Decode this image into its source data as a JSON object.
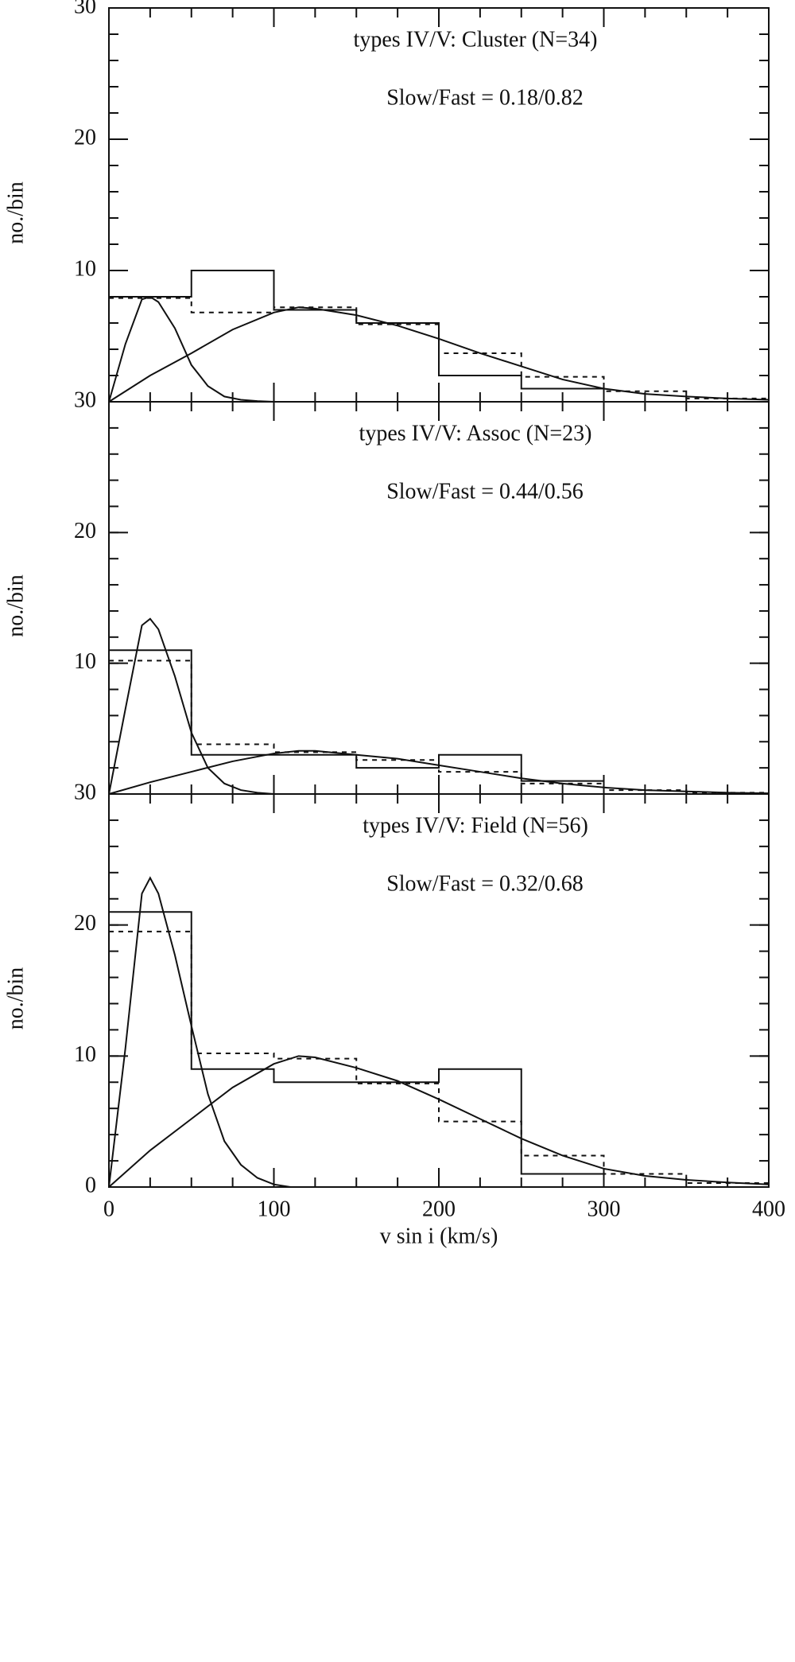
{
  "chart_data": [
    {
      "type": "histogram",
      "title": "types IV/V: Cluster (N=34)",
      "annotation": "Slow/Fast = 0.18/0.82",
      "ylabel": "no./bin",
      "bins": [
        0,
        50,
        100,
        150,
        200,
        250,
        300,
        350,
        400
      ],
      "counts": [
        8,
        10,
        7,
        6,
        2,
        1,
        0,
        0
      ],
      "dashed_counts": [
        7.9,
        6.8,
        7.2,
        5.9,
        3.7,
        1.9,
        0.8,
        0.25
      ],
      "curves": [
        {
          "x": [
            0,
            10,
            20,
            25,
            30,
            40,
            50,
            60,
            70,
            80,
            90,
            100,
            110
          ],
          "values": [
            0,
            4.4,
            7.8,
            8,
            7.6,
            5.6,
            2.8,
            1.2,
            0.4,
            0.15,
            0.05,
            0,
            0
          ]
        },
        {
          "x": [
            0,
            25,
            50,
            75,
            100,
            115,
            125,
            150,
            175,
            200,
            225,
            250,
            275,
            300,
            325,
            350,
            375,
            400
          ],
          "values": [
            0,
            2.0,
            3.7,
            5.5,
            6.8,
            7.2,
            7.1,
            6.6,
            5.8,
            4.8,
            3.7,
            2.7,
            1.7,
            1.0,
            0.6,
            0.4,
            0.25,
            0.15
          ]
        }
      ],
      "xlim": [
        0,
        400
      ],
      "xticks": [
        0,
        100,
        200,
        300,
        400
      ],
      "show_xtick_labels": false,
      "x_minor_step": 25,
      "ylim": [
        0,
        30
      ],
      "yticks": [
        10,
        20,
        30
      ],
      "y_minor_step": 2
    },
    {
      "type": "histogram",
      "title": "types IV/V: Assoc (N=23)",
      "annotation": "Slow/Fast = 0.44/0.56",
      "ylabel": "no./bin",
      "bins": [
        0,
        50,
        100,
        150,
        200,
        250,
        300,
        350,
        400
      ],
      "counts": [
        11,
        3,
        3,
        2,
        3,
        1,
        0,
        0
      ],
      "dashed_counts": [
        10.2,
        3.8,
        3.2,
        2.6,
        1.7,
        0.8,
        0.3,
        0.1
      ],
      "curves": [
        {
          "x": [
            0,
            10,
            20,
            25,
            30,
            40,
            50,
            60,
            70,
            80,
            90,
            100,
            110
          ],
          "values": [
            0,
            6.5,
            12.9,
            13.4,
            12.6,
            9,
            4.7,
            2,
            0.8,
            0.3,
            0.1,
            0,
            0
          ]
        },
        {
          "x": [
            0,
            25,
            50,
            75,
            100,
            115,
            125,
            150,
            175,
            200,
            225,
            250,
            275,
            300,
            325,
            350,
            375,
            400
          ],
          "values": [
            0,
            0.9,
            1.7,
            2.5,
            3.1,
            3.3,
            3.3,
            3.0,
            2.7,
            2.2,
            1.7,
            1.2,
            0.8,
            0.5,
            0.3,
            0.2,
            0.1,
            0.05
          ]
        }
      ],
      "xlim": [
        0,
        400
      ],
      "xticks": [
        0,
        100,
        200,
        300,
        400
      ],
      "show_xtick_labels": false,
      "x_minor_step": 25,
      "ylim": [
        0,
        30
      ],
      "yticks": [
        10,
        20,
        30
      ],
      "y_minor_step": 2
    },
    {
      "type": "histogram",
      "title": "types IV/V: Field (N=56)",
      "annotation": "Slow/Fast = 0.32/0.68",
      "ylabel": "no./bin",
      "xlabel": "v sin i (km/s)",
      "bins": [
        0,
        50,
        100,
        150,
        200,
        250,
        300,
        350,
        400
      ],
      "counts": [
        21,
        9,
        8,
        8,
        9,
        1,
        0,
        0
      ],
      "dashed_counts": [
        19.5,
        10.2,
        9.8,
        7.9,
        5,
        2.4,
        1,
        0.3
      ],
      "curves": [
        {
          "x": [
            0,
            10,
            20,
            25,
            30,
            40,
            50,
            60,
            70,
            80,
            90,
            100,
            110
          ],
          "values": [
            0,
            10.6,
            22.4,
            23.6,
            22.4,
            17.7,
            12.3,
            7.1,
            3.5,
            1.7,
            0.7,
            0.2,
            0
          ]
        },
        {
          "x": [
            0,
            25,
            50,
            75,
            100,
            115,
            125,
            150,
            175,
            200,
            225,
            250,
            275,
            300,
            325,
            350,
            375,
            400
          ],
          "values": [
            0,
            2.8,
            5.2,
            7.6,
            9.4,
            10,
            9.9,
            9.1,
            8.1,
            6.7,
            5.2,
            3.7,
            2.4,
            1.4,
            0.85,
            0.55,
            0.35,
            0.2
          ]
        }
      ],
      "xlim": [
        0,
        400
      ],
      "xticks": [
        0,
        100,
        200,
        300,
        400
      ],
      "show_xtick_labels": true,
      "x_minor_step": 25,
      "ylim": [
        0,
        30
      ],
      "yticks": [
        0,
        10,
        20,
        30
      ],
      "y_minor_step": 2
    }
  ]
}
